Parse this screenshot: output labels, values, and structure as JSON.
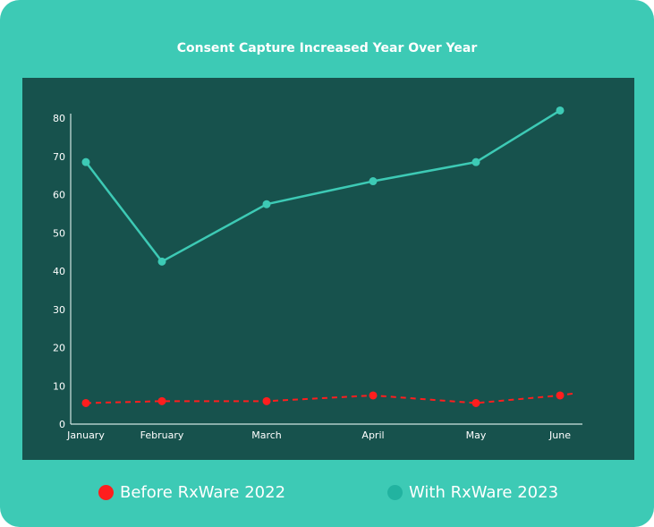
{
  "chart_data": {
    "type": "line",
    "title": "Consent Capture Increased Year Over Year",
    "categories": [
      "January",
      "February",
      "March",
      "April",
      "May",
      "June"
    ],
    "ylim": [
      0,
      80
    ],
    "yticks": [
      0,
      10,
      20,
      30,
      40,
      50,
      60,
      70,
      80
    ],
    "grid": false,
    "legend_position": "bottom",
    "series": [
      {
        "name": "Before RxWare 2022",
        "values": [
          5.5,
          6,
          6,
          7.5,
          5.5,
          7.5
        ],
        "color": "#ff1e1e",
        "style": "dashed"
      },
      {
        "name": "With RxWare 2023",
        "values": [
          68.5,
          42.5,
          57.5,
          63.5,
          68.5,
          82
        ],
        "color": "#3dcab5",
        "style": "solid"
      }
    ]
  },
  "colors": {
    "background": "#3dcab5",
    "plot_area": "#17524d",
    "text": "#ffffff"
  }
}
